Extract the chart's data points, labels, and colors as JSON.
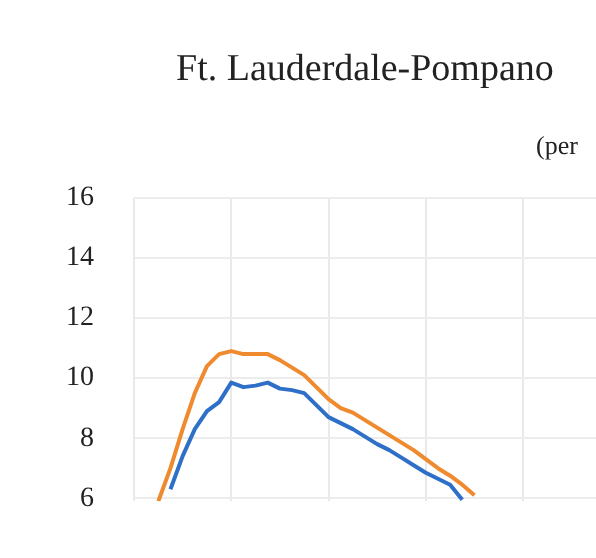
{
  "chart_data": {
    "type": "line",
    "title": "Ft. Lauderdale-Pompano",
    "subtitle": "(per",
    "categories": [
      null,
      null,
      null,
      null,
      null,
      null,
      null,
      null,
      null,
      null,
      null,
      null,
      null,
      null,
      null,
      null,
      null,
      null,
      null,
      null,
      null,
      null,
      null,
      null,
      null,
      null,
      null,
      null,
      null,
      null,
      null,
      null,
      null,
      null,
      null,
      null,
      null,
      null,
      null
    ],
    "series": [
      {
        "color": "#2e6fc7",
        "values": [
          null,
          null,
          null,
          6.3,
          7.4,
          8.3,
          8.9,
          9.2,
          9.85,
          9.7,
          9.75,
          9.85,
          9.65,
          9.6,
          9.5,
          9.1,
          8.7,
          8.5,
          8.3,
          8.05,
          7.8,
          7.6,
          7.35,
          7.1,
          6.85,
          6.65,
          6.45,
          5.95,
          null,
          null,
          null,
          null,
          null,
          null,
          null,
          null,
          null,
          null,
          null
        ]
      },
      {
        "color": "#ef8a2e",
        "values": [
          null,
          null,
          5.9,
          7.0,
          8.3,
          9.5,
          10.4,
          10.8,
          10.9,
          10.8,
          10.8,
          10.8,
          10.6,
          10.35,
          10.1,
          9.7,
          9.3,
          9.0,
          8.85,
          8.6,
          8.35,
          8.1,
          7.85,
          7.6,
          7.3,
          7.0,
          6.75,
          6.45,
          6.1,
          null,
          null,
          null,
          null,
          null,
          null,
          null,
          null,
          null,
          null
        ]
      }
    ],
    "ylim": [
      5.9,
      16
    ],
    "yticks": [
      6,
      8,
      10,
      12,
      14,
      16
    ],
    "grid": true,
    "tick_labels": "y",
    "marker": "none",
    "line_style": "solid"
  }
}
